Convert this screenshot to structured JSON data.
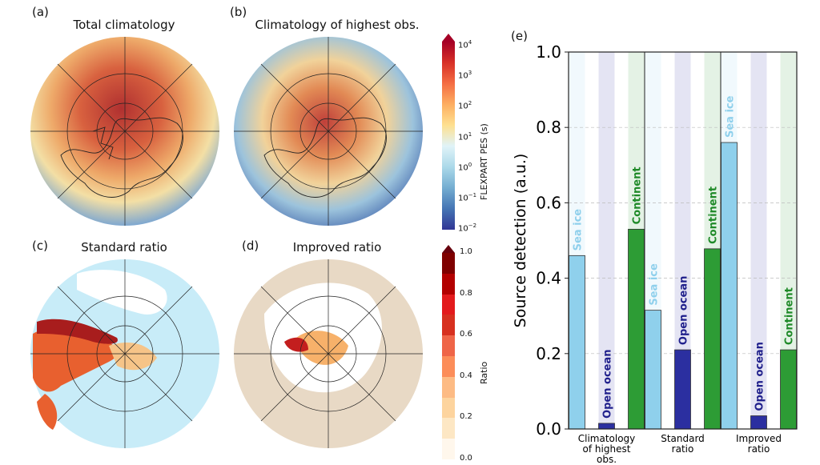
{
  "panels": {
    "a": {
      "letter": "(a)",
      "title": "Total climatology"
    },
    "b": {
      "letter": "(b)",
      "title": "Climatology of highest obs."
    },
    "c": {
      "letter": "(c)",
      "title": "Standard ratio"
    },
    "d": {
      "letter": "(d)",
      "title": "Improved ratio"
    },
    "e": {
      "letter": "(e)"
    }
  },
  "colorbar_pes": {
    "label": "FLEXPART PES (s)",
    "ticks": [
      {
        "base": "10",
        "exp": "4"
      },
      {
        "base": "10",
        "exp": "3"
      },
      {
        "base": "10",
        "exp": "2"
      },
      {
        "base": "10",
        "exp": "1"
      },
      {
        "base": "10",
        "exp": "0"
      },
      {
        "base": "10",
        "exp": "−1"
      },
      {
        "base": "10",
        "exp": "−2"
      }
    ]
  },
  "colorbar_ratio": {
    "label": "Ratio",
    "ticks": [
      "1.0",
      "0.8",
      "0.6",
      "0.4",
      "0.2",
      "0.0"
    ],
    "colors": [
      "#fff7ec",
      "#fde7c4",
      "#fdd49e",
      "#fdbb84",
      "#fc8d59",
      "#ef6548",
      "#d7301f",
      "#e31a1c",
      "#b30000",
      "#7f0000"
    ]
  },
  "colors": {
    "sea_ice": "#8fd0ec",
    "open_ocean": "#2b2fa0",
    "continent": "#2d9c35",
    "sea_ice_label": "#8fd0ec",
    "open_ocean_label": "#20208c",
    "continent_label": "#1f8a28"
  },
  "chart_data": {
    "type": "bar",
    "ylabel": "Source detection (a.u.)",
    "ylim": [
      0,
      1.0
    ],
    "yticks": [
      "0.0",
      "0.2",
      "0.4",
      "0.6",
      "0.8",
      "1.0"
    ],
    "grid": true,
    "categories": [
      [
        "Climatology",
        "of highest",
        "obs."
      ],
      [
        "Standard",
        "ratio"
      ],
      [
        "Improved",
        "ratio"
      ]
    ],
    "series": [
      {
        "name": "Sea ice",
        "values": [
          0.46,
          0.315,
          0.76
        ]
      },
      {
        "name": "Open ocean",
        "values": [
          0.015,
          0.21,
          0.035
        ]
      },
      {
        "name": "Continent",
        "values": [
          0.53,
          0.478,
          0.21
        ]
      }
    ]
  }
}
